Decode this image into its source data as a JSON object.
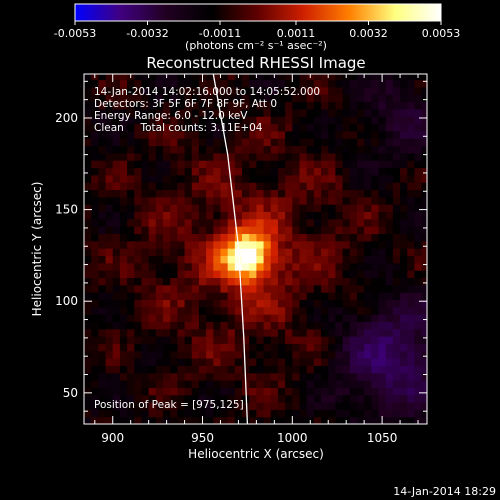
{
  "colorbar": {
    "tick_labels": [
      "-0.0053",
      "-0.0032",
      "-0.0011",
      "0.0011",
      "0.0032",
      "0.0053"
    ],
    "range": [
      -0.0053,
      0.0053
    ],
    "unit_label": "(photons cm⁻² s⁻¹ asec⁻²)",
    "colors": [
      "#0000ff",
      "#400080",
      "#200020",
      "#000000",
      "#600000",
      "#d02000",
      "#ff8000",
      "#ffff80",
      "#ffffff"
    ]
  },
  "chart_data": {
    "type": "heatmap",
    "title": "Reconstructed RHESSI Image",
    "xlabel": "Heliocentric X (arcsec)",
    "ylabel": "Heliocentric Y (arcsec)",
    "xlim": [
      884,
      1075
    ],
    "ylim": [
      33,
      224
    ],
    "x_ticks": [
      900,
      950,
      1000,
      1050
    ],
    "y_ticks": [
      50,
      100,
      150,
      200
    ],
    "annotations": [
      "14-Jan-2014 14:02:16.000 to 14:05:52.000",
      "Detectors: 3F 5F 6F 7F 8F 9F, Att 0",
      "Energy Range: 6.0 - 12.0 keV",
      "Clean     Total counts: 3.11E+04"
    ],
    "peak_label": "Position of Peak = [975,125]",
    "peak": [
      975,
      125
    ],
    "limb_line": [
      [
        956,
        224
      ],
      [
        964,
        180
      ],
      [
        970,
        130
      ],
      [
        973,
        80
      ],
      [
        975,
        33
      ]
    ]
  },
  "footer": {
    "timestamp": "14-Jan-2014 18:29"
  }
}
